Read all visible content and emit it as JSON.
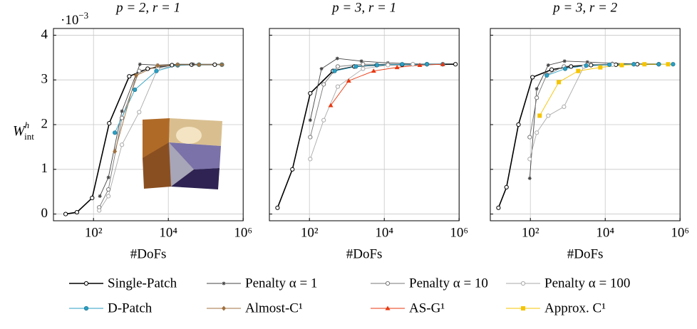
{
  "chart_data": [
    {
      "type": "line",
      "title": "p = 2, r = 1",
      "x_label": "#DoFs",
      "y_label": {
        "base": "W",
        "sup": "h",
        "sub": "int"
      },
      "y_multiplier": {
        "base": "·10",
        "exp": "−3"
      },
      "xscale": "log",
      "xlim": [
        8.5,
        1000000
      ],
      "ylim": [
        -0.15,
        4.15
      ],
      "grid": true,
      "show_ytick_labels": true,
      "xticks": [
        {
          "value": 100,
          "label": "10²"
        },
        {
          "value": 10000,
          "label": "10⁴"
        },
        {
          "value": 1000000,
          "label": "10⁶"
        }
      ],
      "yticks": [
        0,
        1,
        2,
        3,
        4
      ],
      "series": [
        {
          "name": "Single-Patch",
          "color": "#000000",
          "marker": "open-circle",
          "x": [
            18,
            36,
            92,
            263,
            900,
            2800,
            12500,
            42000,
            174000
          ],
          "values": [
            0,
            0.04,
            0.36,
            2.03,
            3.08,
            3.25,
            3.33,
            3.34,
            3.34
          ]
        },
        {
          "name": "Penalty α = 1",
          "color": "#444444",
          "marker": "star",
          "x": [
            148,
            250,
            575,
            1740,
            5200,
            17800,
            46000,
            270000
          ],
          "values": [
            0.4,
            0.82,
            2.3,
            3.35,
            3.33,
            3.35,
            3.35,
            3.35
          ]
        },
        {
          "name": "Penalty α = 10",
          "color": "#777777",
          "marker": "open-circle",
          "x": [
            142,
            250,
            575,
            1660,
            5200,
            17800,
            66000,
            270000
          ],
          "values": [
            0.15,
            0.55,
            2.15,
            3.2,
            3.3,
            3.33,
            3.34,
            3.34
          ]
        },
        {
          "name": "Penalty α = 100",
          "color": "#aaaaaa",
          "marker": "open-circle",
          "x": [
            142,
            250,
            575,
            1660,
            5200,
            17800,
            66000,
            270000
          ],
          "values": [
            0.08,
            0.4,
            1.55,
            2.28,
            3.25,
            3.32,
            3.34,
            3.34
          ]
        },
        {
          "name": "D-Patch",
          "color": "#2a9fc4",
          "marker": "filled-circle",
          "x": [
            372,
            1270,
            4800,
            17800,
            66000,
            270000
          ],
          "values": [
            1.82,
            2.78,
            3.2,
            3.33,
            3.34,
            3.34
          ]
        },
        {
          "name": "Almost-C¹",
          "color": "#a0703f",
          "marker": "diamond",
          "x": [
            372,
            1380,
            5200,
            17800,
            66000,
            270000
          ],
          "values": [
            1.4,
            3.1,
            3.32,
            3.34,
            3.34,
            3.34
          ]
        }
      ]
    },
    {
      "type": "line",
      "title": "p = 3, r = 1",
      "x_label": "#DoFs",
      "xscale": "log",
      "xlim": [
        8.5,
        1000000
      ],
      "ylim": [
        -0.15,
        4.15
      ],
      "grid": true,
      "show_ytick_labels": false,
      "xticks": [
        {
          "value": 100,
          "label": "10²"
        },
        {
          "value": 10000,
          "label": "10⁴"
        },
        {
          "value": 1000000,
          "label": "10⁶"
        }
      ],
      "yticks": [
        0,
        1,
        2,
        3,
        4
      ],
      "series": [
        {
          "name": "Single-Patch",
          "color": "#000000",
          "marker": "open-circle",
          "x": [
            14,
            35,
            105,
            425,
            1580,
            6300,
            30000,
            138000,
            800000
          ],
          "values": [
            0.14,
            1.0,
            2.7,
            3.2,
            3.3,
            3.33,
            3.34,
            3.35,
            3.35
          ]
        },
        {
          "name": "Penalty α = 1",
          "color": "#444444",
          "marker": "star",
          "x": [
            105,
            210,
            555,
            2450,
            12500,
            58000,
            365000
          ],
          "values": [
            2.1,
            3.25,
            3.48,
            3.42,
            3.38,
            3.36,
            3.35
          ]
        },
        {
          "name": "Penalty α = 10",
          "color": "#777777",
          "marker": "open-circle",
          "x": [
            105,
            240,
            570,
            2700,
            12500,
            58000,
            365000
          ],
          "values": [
            1.72,
            2.9,
            3.3,
            3.35,
            3.35,
            3.35,
            3.35
          ]
        },
        {
          "name": "Penalty α = 100",
          "color": "#aaaaaa",
          "marker": "open-circle",
          "x": [
            105,
            240,
            570,
            2700,
            12500,
            58000,
            365000
          ],
          "values": [
            1.23,
            2.1,
            2.85,
            3.25,
            3.33,
            3.35,
            3.35
          ]
        },
        {
          "name": "D-Patch",
          "color": "#2a9fc4",
          "marker": "filled-circle",
          "x": [
            470,
            1740,
            6400,
            30000,
            138000,
            365000
          ],
          "values": [
            3.2,
            3.3,
            3.33,
            3.35,
            3.35,
            3.35
          ]
        },
        {
          "name": "AS-G¹",
          "color": "#e8370f",
          "marker": "triangle",
          "x": [
            370,
            1120,
            5200,
            22000,
            89000,
            365000
          ],
          "values": [
            2.43,
            2.98,
            3.2,
            3.28,
            3.33,
            3.35
          ]
        }
      ]
    },
    {
      "type": "line",
      "title": "p = 3, r = 2",
      "x_label": "#DoFs",
      "xscale": "log",
      "xlim": [
        8.5,
        1000000
      ],
      "ylim": [
        -0.15,
        4.15
      ],
      "grid": true,
      "show_ytick_labels": false,
      "xticks": [
        {
          "value": 100,
          "label": "10²"
        },
        {
          "value": 10000,
          "label": "10⁴"
        },
        {
          "value": 1000000,
          "label": "10⁶"
        }
      ],
      "yticks": [
        0,
        1,
        2,
        3,
        4
      ],
      "series": [
        {
          "name": "Single-Patch",
          "color": "#000000",
          "marker": "open-circle",
          "x": [
            14,
            23,
            48,
            114,
            370,
            1220,
            4170,
            19300,
            72000,
            270000
          ],
          "values": [
            0.14,
            0.6,
            2.0,
            3.06,
            3.23,
            3.3,
            3.33,
            3.34,
            3.35,
            3.35
          ]
        },
        {
          "name": "Penalty α = 1",
          "color": "#444444",
          "marker": "star",
          "x": [
            96,
            148,
            300,
            820,
            3330,
            15500,
            58000
          ],
          "values": [
            0.8,
            2.8,
            3.33,
            3.42,
            3.4,
            3.37,
            3.36
          ]
        },
        {
          "name": "Penalty α = 10",
          "color": "#777777",
          "marker": "open-circle",
          "x": [
            96,
            148,
            275,
            790,
            3330,
            15500,
            58000
          ],
          "values": [
            1.72,
            2.6,
            3.12,
            3.3,
            3.34,
            3.35,
            3.35
          ]
        },
        {
          "name": "Penalty α = 100",
          "color": "#aaaaaa",
          "marker": "open-circle",
          "x": [
            96,
            148,
            300,
            790,
            2700,
            15500,
            58000
          ],
          "values": [
            1.23,
            1.82,
            2.2,
            2.4,
            3.3,
            3.34,
            3.35
          ]
        },
        {
          "name": "D-Patch",
          "color": "#2a9fc4",
          "marker": "filled-circle",
          "x": [
            275,
            850,
            3100,
            13000,
            58000,
            270000,
            650000
          ],
          "values": [
            3.1,
            3.25,
            3.32,
            3.34,
            3.35,
            3.35,
            3.35
          ]
        },
        {
          "name": "Approx. C¹",
          "color": "#f5c400",
          "marker": "square",
          "x": [
            177,
            575,
            1900,
            7400,
            27600,
            112000,
            480000
          ],
          "values": [
            2.2,
            2.95,
            3.2,
            3.28,
            3.33,
            3.35,
            3.35
          ]
        }
      ]
    }
  ]
}
